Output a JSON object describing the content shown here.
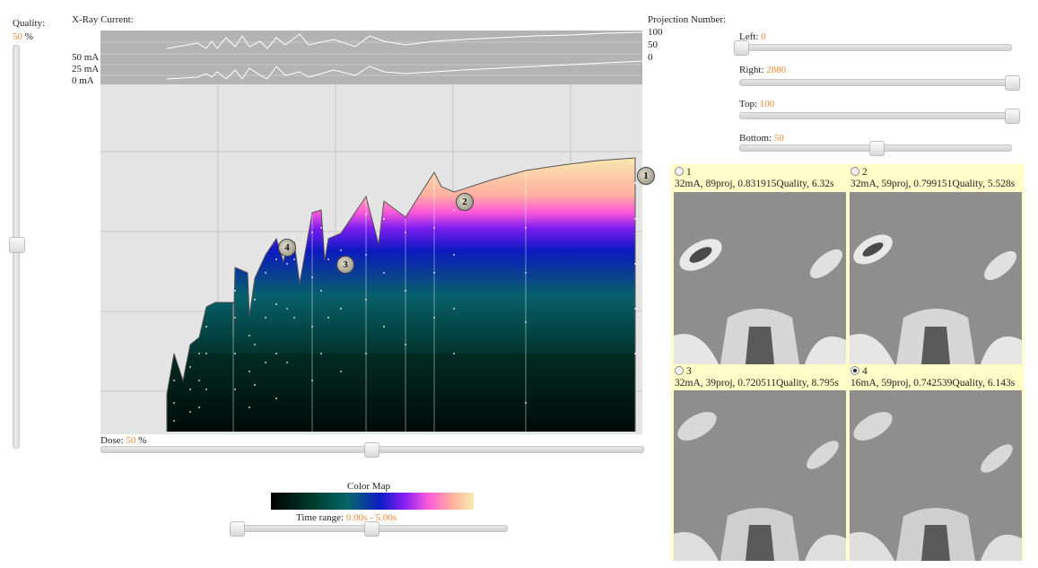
{
  "quality": {
    "label": "Quality:",
    "value": "50",
    "unit": "%",
    "level": 0.5
  },
  "xray": {
    "title": "X-Ray Current:",
    "ticks": [
      "50 mA",
      "25 mA",
      "0 mA"
    ]
  },
  "projection": {
    "title": "Projection Number:",
    "ticks": [
      "100",
      "50",
      "0"
    ]
  },
  "dose": {
    "label": "Dose:",
    "value": "50",
    "unit": "%",
    "level": 0.5
  },
  "colormap": {
    "title": "Color Map"
  },
  "timerange": {
    "label": "Time range:",
    "value": "0.00s - 5.00s",
    "start": 0.0,
    "end": 0.5
  },
  "crop": {
    "left": {
      "label": "Left:",
      "value": "0",
      "level": 0.0
    },
    "right": {
      "label": "Right:",
      "value": "2880",
      "level": 1.0
    },
    "top": {
      "label": "Top:",
      "value": "100",
      "level": 1.0
    },
    "bottom": {
      "label": "Bottom:",
      "value": "50",
      "level": 0.5
    }
  },
  "markers": [
    "1",
    "2",
    "3",
    "4"
  ],
  "results": [
    {
      "id": "1",
      "desc": "32mA, 89proj, 0.831915Quality, 6.32s",
      "selected": false
    },
    {
      "id": "2",
      "desc": "32mA, 59proj, 0.799151Quality, 5.528s",
      "selected": false
    },
    {
      "id": "3",
      "desc": "32mA, 39proj, 0.720511Quality, 8.795s",
      "selected": false
    },
    {
      "id": "4",
      "desc": "16mA, 59proj, 0.742539Quality, 6.143s",
      "selected": true
    }
  ],
  "colors": {
    "accent": "#f08a3a",
    "chart_bg": "#e4e4e4",
    "strip_bg": "#b3b3b3",
    "panel_bg": "#fffdc8",
    "colormap_stops": [
      "#000000",
      "#003b2a",
      "#06656a",
      "#0d1dc6",
      "#8a1ef5",
      "#ff5ed9",
      "#ffb39d",
      "#f8eab0"
    ]
  }
}
